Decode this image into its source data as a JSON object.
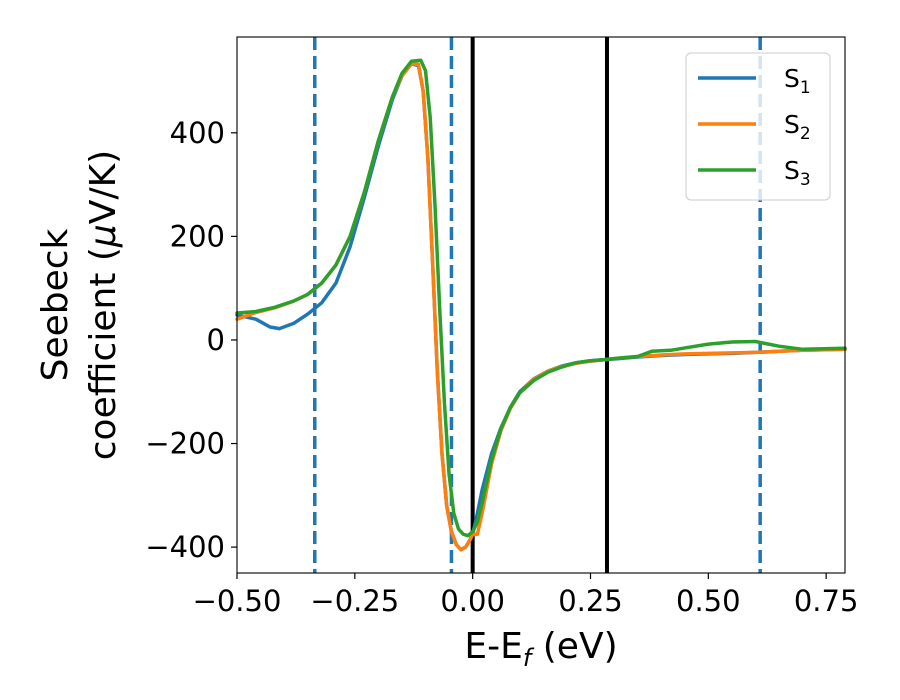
{
  "chart_data": {
    "type": "line",
    "xlabel": {
      "main": "E-E",
      "sub": "f",
      "unit": " (eV)"
    },
    "ylabel": {
      "line1": "Seebeck",
      "line2_pre": "coefficient  (",
      "mu": "μ",
      "line2_post": "V/K)"
    },
    "xlim": [
      -0.5,
      0.79
    ],
    "ylim": [
      -450,
      585
    ],
    "xticks": [
      -0.5,
      -0.25,
      0.0,
      0.25,
      0.5,
      0.75
    ],
    "xtick_labels": [
      "−0.50",
      "−0.25",
      "0.00",
      "0.25",
      "0.50",
      "0.75"
    ],
    "yticks": [
      -400,
      -200,
      0,
      200,
      400
    ],
    "ytick_labels": [
      "−400",
      "−200",
      "0",
      "200",
      "400"
    ],
    "grid": false,
    "legend_position": "top-right",
    "dashed_vlines": [
      -0.335,
      -0.045,
      0.61
    ],
    "solid_vlines": [
      0.0,
      0.285
    ],
    "series": [
      {
        "name": "S",
        "sub": "1",
        "color": "#1f77b4",
        "x": [
          -0.5,
          -0.46,
          -0.43,
          -0.41,
          -0.38,
          -0.35,
          -0.32,
          -0.29,
          -0.26,
          -0.23,
          -0.2,
          -0.17,
          -0.15,
          -0.13,
          -0.115,
          -0.105,
          -0.095,
          -0.085,
          -0.075,
          -0.065,
          -0.055,
          -0.045,
          -0.035,
          -0.025,
          -0.015,
          -0.005,
          0.0,
          0.01,
          0.02,
          0.04,
          0.06,
          0.08,
          0.1,
          0.13,
          0.16,
          0.19,
          0.22,
          0.25,
          0.28,
          0.31,
          0.35,
          0.4,
          0.45,
          0.5,
          0.55,
          0.6,
          0.65,
          0.7,
          0.79
        ],
        "y": [
          48,
          40,
          25,
          22,
          32,
          50,
          72,
          110,
          180,
          275,
          375,
          465,
          510,
          533,
          530,
          480,
          350,
          150,
          -60,
          -220,
          -320,
          -370,
          -395,
          -405,
          -400,
          -385,
          -375,
          -335,
          -290,
          -220,
          -170,
          -130,
          -100,
          -75,
          -60,
          -50,
          -44,
          -40,
          -38,
          -36,
          -33,
          -30,
          -28,
          -27,
          -26,
          -24,
          -22,
          -20,
          -18
        ]
      },
      {
        "name": "S",
        "sub": "2",
        "color": "#ff7f0e",
        "x": [
          -0.5,
          -0.46,
          -0.42,
          -0.38,
          -0.35,
          -0.32,
          -0.29,
          -0.26,
          -0.23,
          -0.2,
          -0.17,
          -0.15,
          -0.13,
          -0.115,
          -0.105,
          -0.095,
          -0.085,
          -0.075,
          -0.065,
          -0.055,
          -0.045,
          -0.035,
          -0.025,
          -0.015,
          -0.005,
          0.0,
          0.01,
          0.02,
          0.04,
          0.06,
          0.08,
          0.1,
          0.13,
          0.16,
          0.19,
          0.22,
          0.25,
          0.28,
          0.31,
          0.35,
          0.4,
          0.45,
          0.5,
          0.55,
          0.6,
          0.65,
          0.7,
          0.79
        ],
        "y": [
          40,
          53,
          62,
          75,
          88,
          110,
          145,
          200,
          285,
          385,
          470,
          510,
          533,
          532,
          480,
          350,
          150,
          -60,
          -220,
          -320,
          -370,
          -395,
          -405,
          -400,
          -385,
          -375,
          -375,
          -335,
          -240,
          -175,
          -132,
          -102,
          -76,
          -60,
          -51,
          -45,
          -41,
          -38,
          -35,
          -32,
          -29,
          -27,
          -26,
          -25,
          -24,
          -22,
          -20,
          -18
        ]
      },
      {
        "name": "S",
        "sub": "3",
        "color": "#2ca02c",
        "x": [
          -0.5,
          -0.46,
          -0.42,
          -0.38,
          -0.35,
          -0.32,
          -0.29,
          -0.26,
          -0.23,
          -0.2,
          -0.17,
          -0.15,
          -0.13,
          -0.11,
          -0.1,
          -0.09,
          -0.08,
          -0.07,
          -0.06,
          -0.05,
          -0.04,
          -0.03,
          -0.02,
          -0.01,
          0.0,
          0.01,
          0.02,
          0.04,
          0.06,
          0.08,
          0.1,
          0.13,
          0.16,
          0.19,
          0.22,
          0.25,
          0.28,
          0.31,
          0.35,
          0.38,
          0.42,
          0.46,
          0.5,
          0.55,
          0.6,
          0.65,
          0.7,
          0.79
        ],
        "y": [
          52,
          55,
          63,
          75,
          88,
          110,
          145,
          200,
          285,
          385,
          470,
          515,
          538,
          540,
          520,
          430,
          260,
          60,
          -120,
          -260,
          -335,
          -365,
          -375,
          -378,
          -370,
          -352,
          -315,
          -232,
          -172,
          -130,
          -102,
          -78,
          -62,
          -52,
          -44,
          -40,
          -38,
          -35,
          -32,
          -22,
          -20,
          -14,
          -8,
          -4,
          -3,
          -12,
          -18,
          -16
        ]
      }
    ]
  }
}
